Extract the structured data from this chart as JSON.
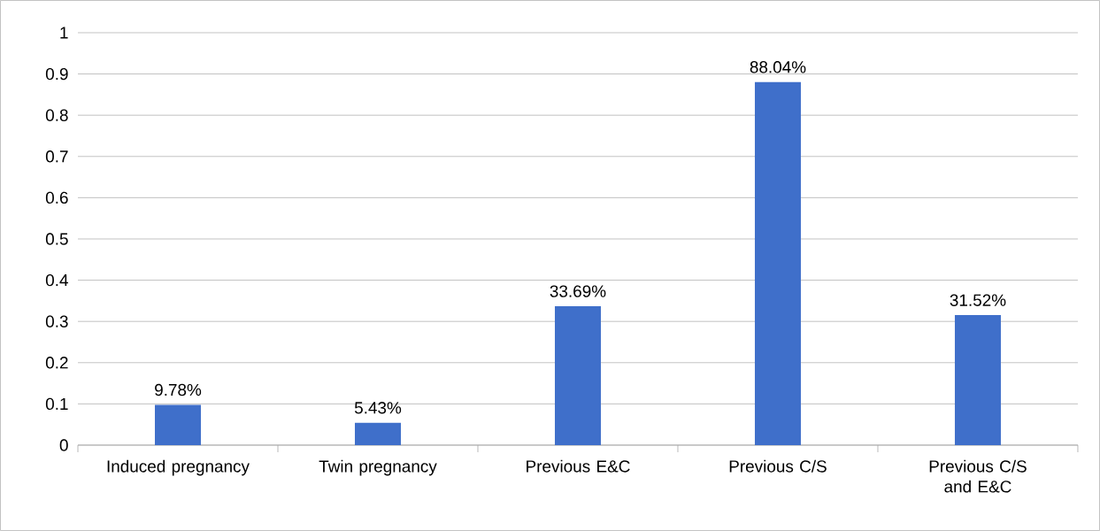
{
  "chart_data": {
    "type": "bar",
    "categories": [
      "Induced pregnancy",
      "Twin pregnancy",
      "Previous E&C",
      "Previous C/S",
      "Previous C/S and E&C"
    ],
    "values": [
      0.0978,
      0.0543,
      0.3369,
      0.8804,
      0.3152
    ],
    "value_labels": [
      "9.78%",
      "5.43%",
      "33.69%",
      "88.04%",
      "31.52%"
    ],
    "color": "#3f6fca",
    "ylim": [
      0,
      1
    ],
    "yticks": [
      0,
      0.1,
      0.2,
      0.3,
      0.4,
      0.5,
      0.6,
      0.7,
      0.8,
      0.9,
      1
    ],
    "grid": "y"
  }
}
